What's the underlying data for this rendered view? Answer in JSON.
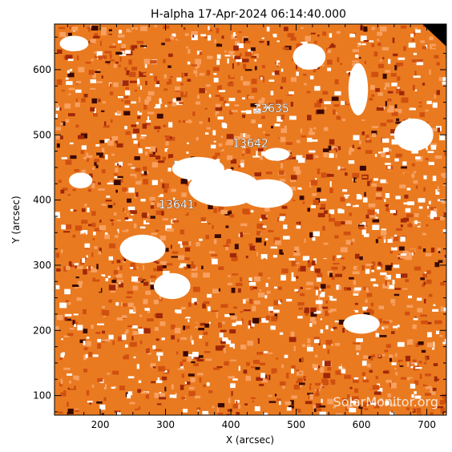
{
  "chart_data": {
    "type": "heatmap",
    "title": "H-alpha 17-Apr-2024 06:14:40.000",
    "xlabel": "X (arcsec)",
    "ylabel": "Y (arcsec)",
    "xlim": [
      130,
      730
    ],
    "ylim": [
      70,
      670
    ],
    "xticks": [
      200,
      300,
      400,
      500,
      600,
      700
    ],
    "yticks": [
      100,
      200,
      300,
      400,
      500,
      600
    ],
    "colormap": [
      "#ffffff",
      "#f7a060",
      "#ea7a20",
      "#d05010",
      "#a02808",
      "#3a0a00"
    ],
    "regions": [
      {
        "label": "13635",
        "x": 462,
        "y": 535
      },
      {
        "label": "13642",
        "x": 430,
        "y": 481
      },
      {
        "label": "13641",
        "x": 317,
        "y": 387
      }
    ],
    "watermark": "SolarMonitor.org"
  }
}
